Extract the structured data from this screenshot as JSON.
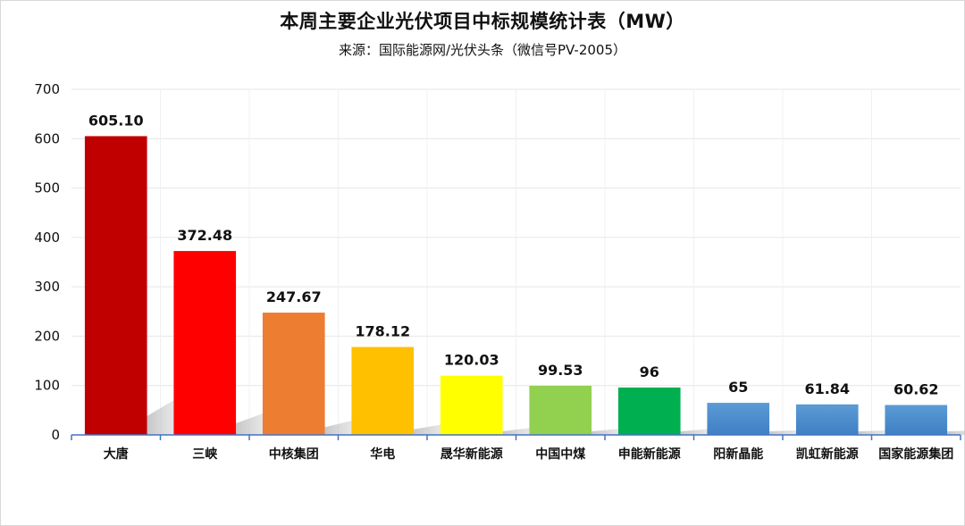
{
  "chart_data": {
    "type": "bar",
    "title": "本周主要企业光伏项目中标规模统计表（MW）",
    "subtitle": "来源：国际能源网/光伏头条（微信号PV-2005）",
    "xlabel": "",
    "ylabel": "",
    "ylim": [
      0,
      700
    ],
    "yticks": [
      "0",
      "100",
      "200",
      "300",
      "400",
      "500",
      "600",
      "700"
    ],
    "grid": true,
    "legend": "none",
    "categories": [
      "大唐",
      "三峡",
      "中核集团",
      "华电",
      "晟华新能源",
      "中国中煤",
      "申能新能源",
      "阳新晶能",
      "凯虹新能源",
      "国家能源集团"
    ],
    "values": [
      605.1,
      372.48,
      247.67,
      178.12,
      120.03,
      99.53,
      96,
      65,
      61.84,
      60.62
    ],
    "data_labels": [
      "605.10",
      "372.48",
      "247.67",
      "178.12",
      "120.03",
      "99.53",
      "96",
      "65",
      "61.84",
      "60.62"
    ],
    "colors": [
      "#C00000",
      "#FF0000",
      "#ED7D31",
      "#FFC000",
      "#FFFF00",
      "#92D050",
      "#00B050",
      "#4A90D9",
      "#4A90D9",
      "#4A90D9"
    ]
  }
}
